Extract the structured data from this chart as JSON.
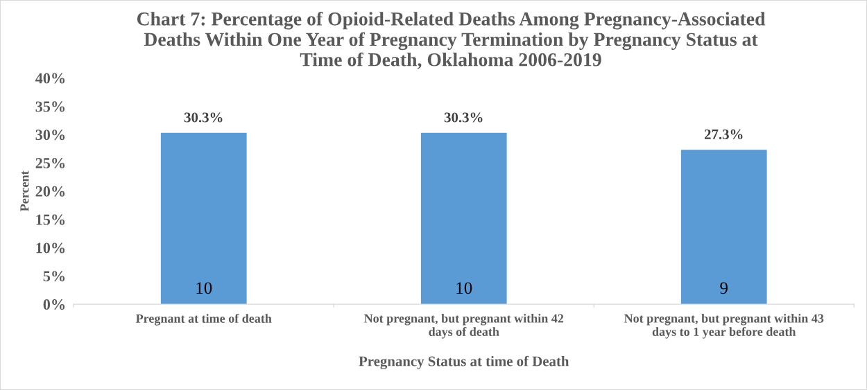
{
  "chart_data": {
    "type": "bar",
    "title": "Chart 7: Percentage of Opioid-Related Deaths Among Pregnancy-Associated\nDeaths Within One Year of Pregnancy Termination by Pregnancy Status at\nTime of Death, Oklahoma 2006-2019",
    "xlabel": "Pregnancy Status at time of Death",
    "ylabel": "Percent",
    "categories": [
      "Pregnant at time of death",
      "Not pregnant, but pregnant within 42\ndays of death",
      "Not pregnant, but pregnant within 43\ndays to 1 year before death"
    ],
    "series": [
      {
        "color": "#5b9bd5",
        "values": [
          30.3,
          30.3,
          27.3
        ],
        "value_labels": [
          "30.3%",
          "30.3%",
          "27.3%"
        ]
      }
    ],
    "annotations": [
      "10",
      "10",
      "9"
    ],
    "ylim": [
      0,
      40
    ],
    "yticks": [
      {
        "value": 0,
        "label": "0%"
      },
      {
        "value": 5,
        "label": "5%"
      },
      {
        "value": 10,
        "label": "10%"
      },
      {
        "value": 15,
        "label": "15%"
      },
      {
        "value": 20,
        "label": "20%"
      },
      {
        "value": 25,
        "label": "25%"
      },
      {
        "value": 30,
        "label": "30%"
      },
      {
        "value": 35,
        "label": "35%"
      },
      {
        "value": 40,
        "label": "40%"
      }
    ],
    "grid": false
  }
}
